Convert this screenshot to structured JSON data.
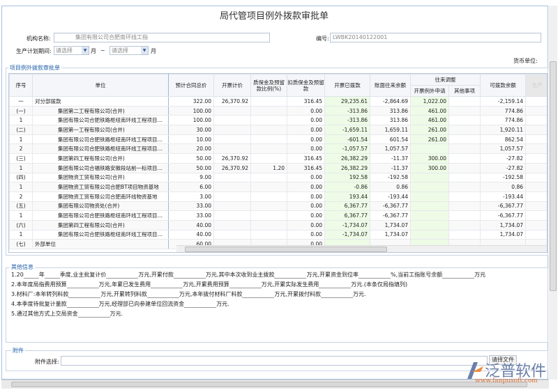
{
  "title": "局代管项目例外拨款审批单",
  "form": {
    "org_label": "机构名称:",
    "org_value": "集团有限公司合肥南环线工指",
    "code_label": "编号:",
    "code_value": "LWBK20140122001",
    "period_label": "生产计划期间:",
    "period_from": "请选择",
    "period_unit": "月",
    "tilde": "~",
    "period_to": "请选择",
    "period_unit2": "月",
    "currency_label": "货币单位:"
  },
  "grid": {
    "legend": "项目例外拨款审批单",
    "headers": {
      "seq": "序号",
      "unit": "单位",
      "contract": "预计合同总价",
      "invoice": "开票计价",
      "ratio": "质保金及预留款比例(%)",
      "withhold": "扣质保金及预留款",
      "paid": "开票已拨款",
      "balance": "账面往来余额",
      "adjust": "往来调整",
      "apply": "开票例外申请",
      "other": "其他事项",
      "avail": "可拨款余额",
      "prod": "生产"
    },
    "rows": [
      [
        "一",
        "对分部拨款",
        "322.00",
        "26,370.92",
        "",
        "316.45",
        "29,235.61",
        "-2,864.69",
        "1,022.00",
        "",
        "-2,159.14"
      ],
      [
        "(一)",
        "集团第二工程有限公司(合并)",
        "100.00",
        "",
        "",
        "0.00",
        "-313.86",
        "313.86",
        "461.00",
        "",
        "774.86"
      ],
      [
        "1",
        "集团有限公司合肥铁路枢纽南环线工程项目…",
        "100.00",
        "",
        "",
        "0.00",
        "-313.86",
        "313.86",
        "461.00",
        "",
        "774.86"
      ],
      [
        "(二)",
        "集团第一工程有限公司(合并)",
        "30.00",
        "",
        "",
        "0.00",
        "-1,659.11",
        "1,659.11",
        "261.00",
        "",
        "1,920.11"
      ],
      [
        "1",
        "集团有限公司合肥铁路枢纽南环线工程项目…",
        "10.00",
        "",
        "",
        "0.00",
        "-601.54",
        "601.54",
        "261.00",
        "",
        "862.54"
      ],
      [
        "2",
        "集团有限公司合肥铁路枢纽南环线工程项目…",
        "20.00",
        "",
        "",
        "0.00",
        "-1,057.57",
        "1,057.57",
        "",
        "",
        "1,057.57"
      ],
      [
        "(三)",
        "集团第四工程有限公司(合并)",
        "50.00",
        "26,370.92",
        "",
        "316.45",
        "26,382.29",
        "-11.37",
        "300.00",
        "",
        "-27.82"
      ],
      [
        "1",
        "集团有限公司合福铁路安徽段站前一标项目…",
        "50.00",
        "26,370.92",
        "1.20",
        "316.45",
        "26,382.29",
        "-11.37",
        "300.00",
        "",
        "-27.82"
      ],
      [
        "(四)",
        "集团物资工贸有限公司(合并)",
        "9.00",
        "",
        "",
        "0.00",
        "192.58",
        "-192.58",
        "",
        "",
        "-192.58"
      ],
      [
        "1",
        "集团物资工贸有限公司合肥BT项目物资基地",
        "6.00",
        "",
        "",
        "0.00",
        "-0.86",
        "0.86",
        "",
        "",
        "0.86"
      ],
      [
        "2",
        "集团物资工贸有限公司合肥南环线物资基地",
        "3.00",
        "",
        "",
        "0.00",
        "193.44",
        "-193.44",
        "",
        "",
        "-193.44"
      ],
      [
        "(五)",
        "集团有限公司物资处(合并)",
        "33.00",
        "",
        "",
        "0.00",
        "6,367.77",
        "-6,367.77",
        "",
        "",
        "-6,367.77"
      ],
      [
        "1",
        "集团有限公司合肥铁路枢纽南环线工程项目…",
        "33.00",
        "",
        "",
        "0.00",
        "6,367.77",
        "-6,367.77",
        "",
        "",
        "-6,367.77"
      ],
      [
        "(六)",
        "集团第四工程有限公司(合并)",
        "40.00",
        "",
        "",
        "0.00",
        "-1,734.07",
        "1,734.07",
        "",
        "",
        "1,734.07"
      ],
      [
        "1",
        "集团有限公司合肥铁路枢纽南环线工程项目…",
        "40.00",
        "",
        "",
        "0.00",
        "-1,734.07",
        "1,734.07",
        "",
        "",
        "1,734.07"
      ],
      [
        "(七)",
        "外部单位",
        "60.00",
        "",
        "",
        "0.00",
        "",
        "",
        "",
        "",
        ""
      ]
    ]
  },
  "other": {
    "legend": "其他信息",
    "l1": [
      "1.20",
      "年",
      "季度,业主批复计价",
      "万元,开累付款",
      "万元,其中本次收到业主拨款",
      "万元,开累资金到位率",
      "%,当前工指账号余额",
      "万元"
    ],
    "l2": [
      "2.本年度局指费用预算",
      "万元,年累已发生费用",
      "万元,开累费用预算",
      "万元,开累实际发生费用",
      "万元.(本条仅局指填列)"
    ],
    "l3": [
      "3.材料厂:本年转列料款",
      "万元,开累转列料款",
      "万元,本年拨付材料厂料款",
      "万元,开累拨付料款",
      "万元."
    ],
    "l4": [
      "4.本季度待批复计量款",
      "万元,经理部已向参建单位回流资金",
      "万元."
    ],
    "l5": [
      "5.通过其他方式上交局资金",
      "万元."
    ]
  },
  "attach": {
    "legend": "附件",
    "label": "附件选择:",
    "button": "请择文件"
  },
  "logo": {
    "text": "泛普软件",
    "url": "www.fanpusoft.com"
  }
}
